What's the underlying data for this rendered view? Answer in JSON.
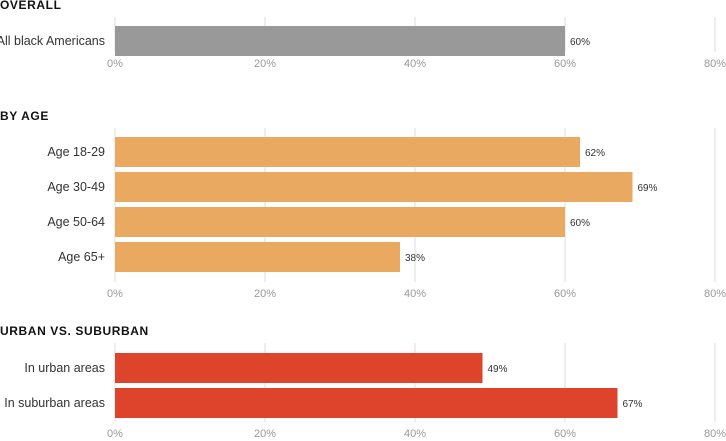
{
  "chart_data": [
    {
      "type": "bar",
      "orientation": "horizontal",
      "title": "OVERALL",
      "categories": [
        "All black Americans"
      ],
      "values": [
        60
      ],
      "value_labels": [
        "60%"
      ],
      "color": "#999999",
      "xlim": [
        0,
        80
      ],
      "ticks": [
        0,
        20,
        40,
        60,
        80
      ],
      "tick_labels": [
        "0%",
        "20%",
        "40%",
        "60%",
        "80%"
      ],
      "grid": true
    },
    {
      "type": "bar",
      "orientation": "horizontal",
      "title": "BY AGE",
      "categories": [
        "Age 18-29",
        "Age 30-49",
        "Age 50-64",
        "Age 65+"
      ],
      "values": [
        62,
        69,
        60,
        38
      ],
      "value_labels": [
        "62%",
        "69%",
        "60%",
        "38%"
      ],
      "color": "#EAA960",
      "xlim": [
        0,
        80
      ],
      "ticks": [
        0,
        20,
        40,
        60,
        80
      ],
      "tick_labels": [
        "0%",
        "20%",
        "40%",
        "60%",
        "80%"
      ],
      "grid": true
    },
    {
      "type": "bar",
      "orientation": "horizontal",
      "title": "URBAN VS. SUBURBAN",
      "categories": [
        "In urban areas",
        "In suburban areas"
      ],
      "values": [
        49,
        67
      ],
      "value_labels": [
        "49%",
        "67%"
      ],
      "color": "#DE442C",
      "xlim": [
        0,
        80
      ],
      "ticks": [
        0,
        20,
        40,
        60,
        80
      ],
      "tick_labels": [
        "0%",
        "20%",
        "40%",
        "60%",
        "80%"
      ],
      "grid": true
    }
  ]
}
